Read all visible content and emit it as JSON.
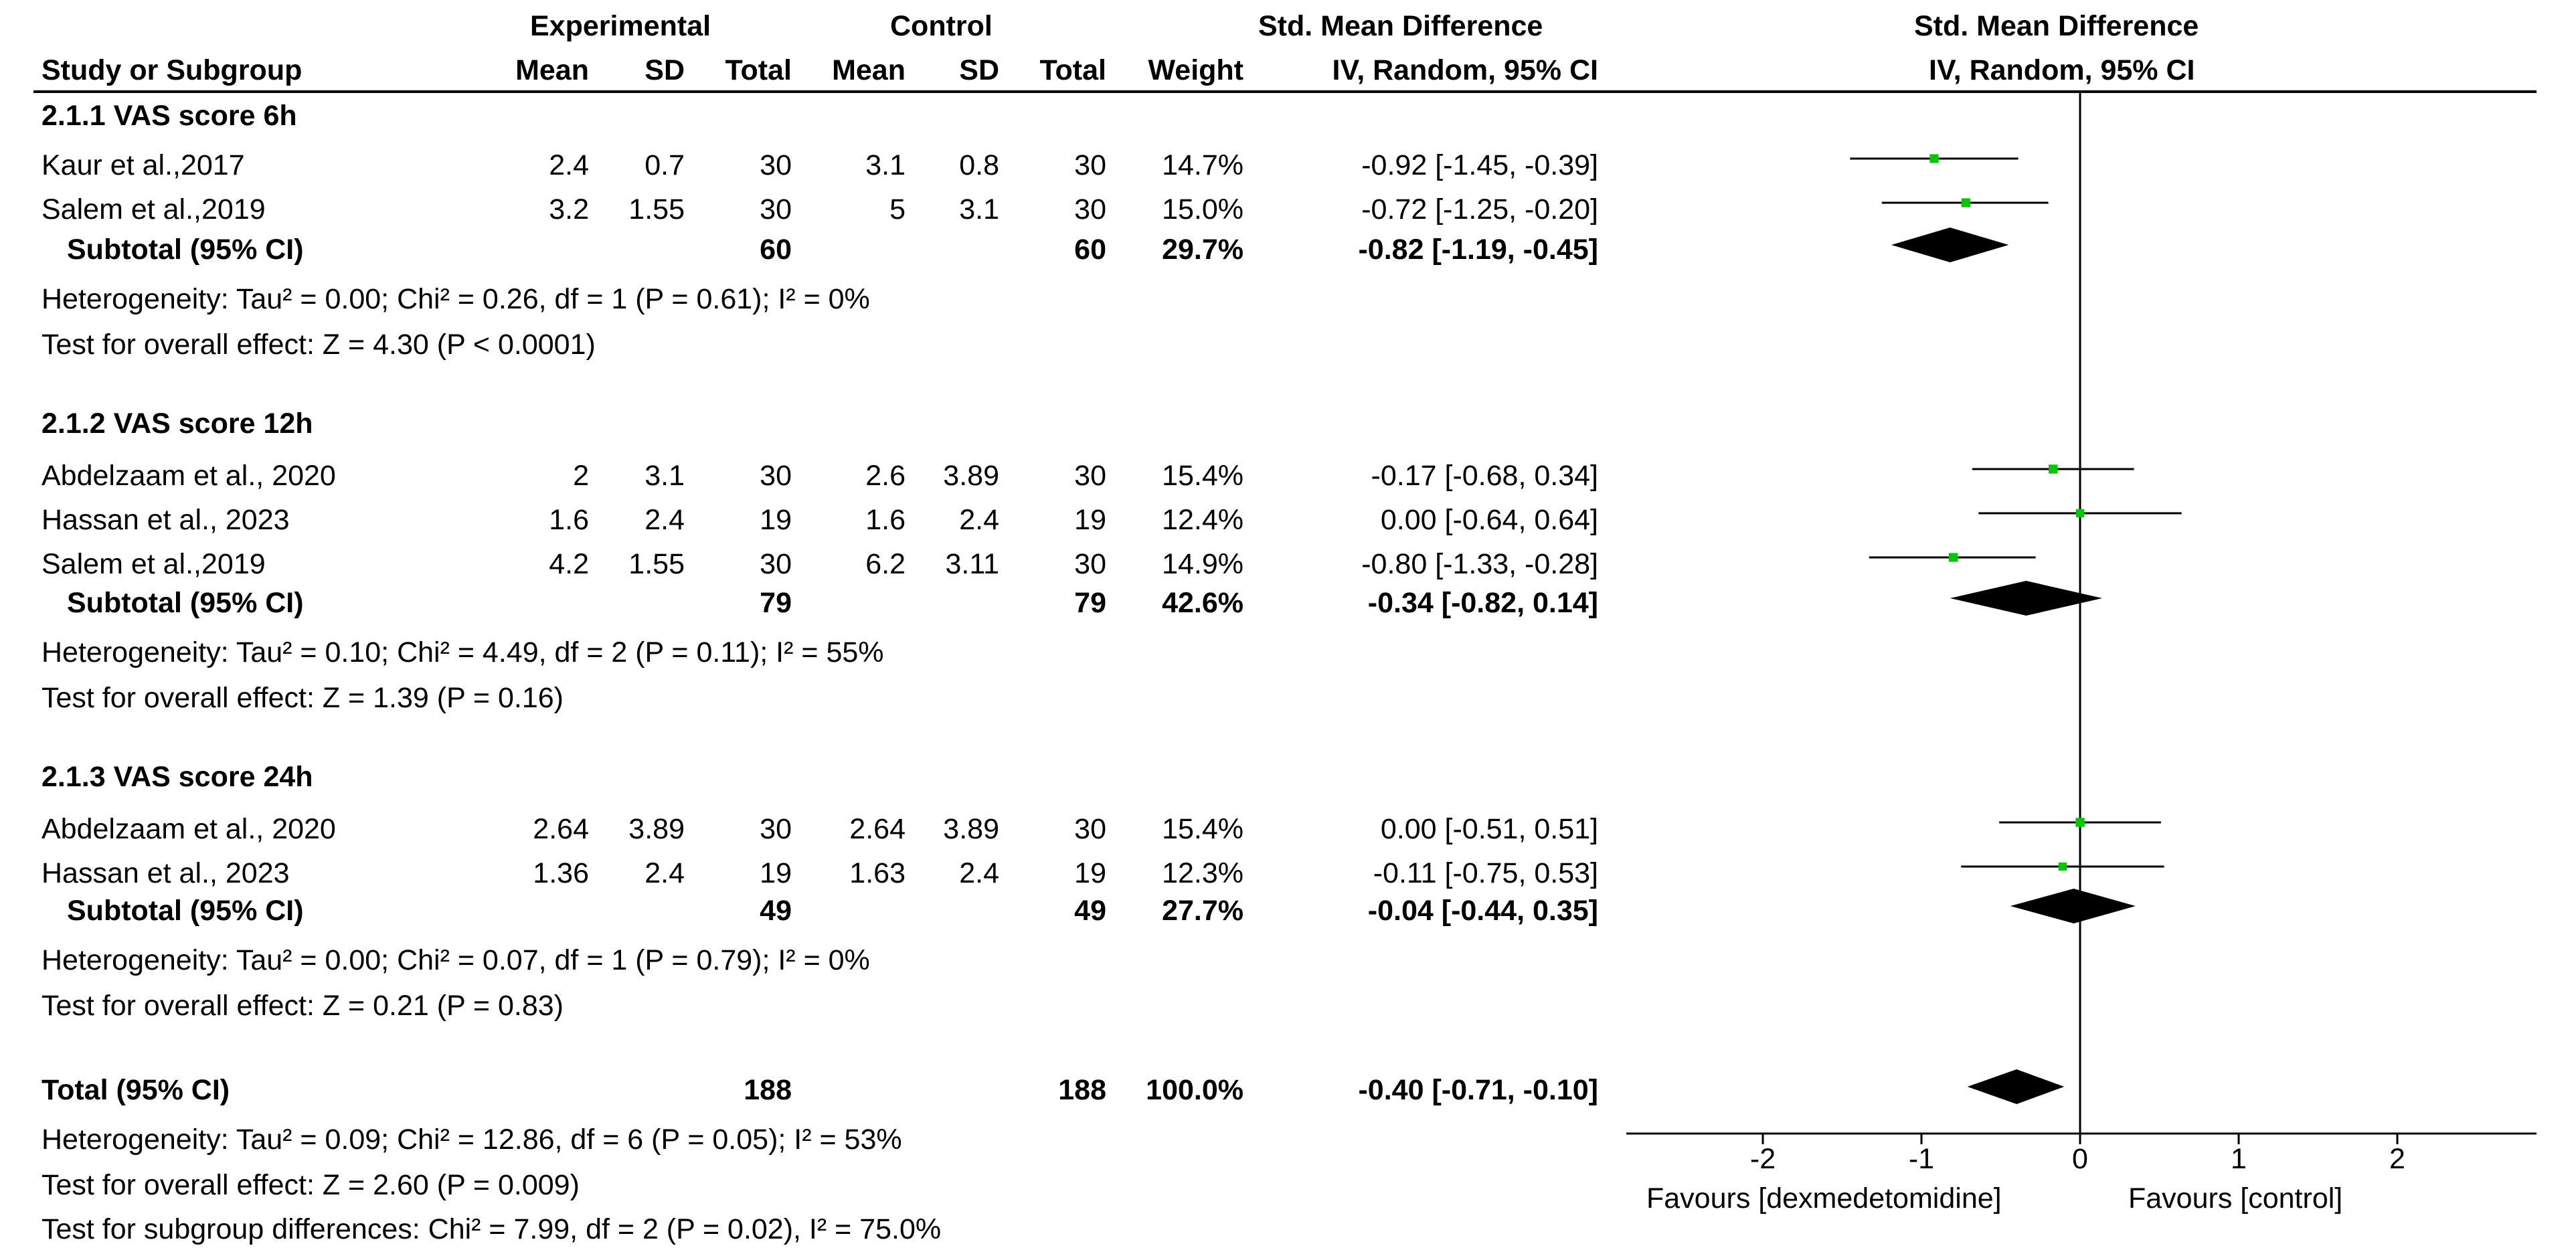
{
  "headers": {
    "experimental_group": "Experimental",
    "control_group": "Control",
    "smd_group": "Std. Mean Difference",
    "study": "Study or Subgroup",
    "exp_mean": "Mean",
    "exp_sd": "SD",
    "exp_total": "Total",
    "ctl_mean": "Mean",
    "ctl_sd": "SD",
    "ctl_total": "Total",
    "weight": "Weight",
    "smd_method": "IV, Random, 95% CI",
    "plot_title": "Std. Mean Difference",
    "plot_method": "IV, Random, 95% CI"
  },
  "subgroups": [
    {
      "title": "2.1.1 VAS score 6h",
      "studies": [
        {
          "name": "Kaur et al.,2017",
          "exp_mean": "2.4",
          "exp_sd": "0.7",
          "exp_total": "30",
          "ctl_mean": "3.1",
          "ctl_sd": "0.8",
          "ctl_total": "30",
          "weight": "14.7%",
          "ci": "-0.92 [-1.45, -0.39]"
        },
        {
          "name": "Salem et al.,2019",
          "exp_mean": "3.2",
          "exp_sd": "1.55",
          "exp_total": "30",
          "ctl_mean": "5",
          "ctl_sd": "3.1",
          "ctl_total": "30",
          "weight": "15.0%",
          "ci": "-0.72 [-1.25, -0.20]"
        }
      ],
      "subtotal": {
        "label": "Subtotal (95% CI)",
        "exp_total": "60",
        "ctl_total": "60",
        "weight": "29.7%",
        "ci": "-0.82 [-1.19, -0.45]"
      },
      "heterogeneity": "Heterogeneity: Tau² = 0.00; Chi² = 0.26, df = 1 (P = 0.61); I² = 0%",
      "overall": "Test for overall effect: Z = 4.30 (P < 0.0001)"
    },
    {
      "title": "2.1.2 VAS score 12h",
      "studies": [
        {
          "name": "Abdelzaam et al., 2020",
          "exp_mean": "2",
          "exp_sd": "3.1",
          "exp_total": "30",
          "ctl_mean": "2.6",
          "ctl_sd": "3.89",
          "ctl_total": "30",
          "weight": "15.4%",
          "ci": "-0.17 [-0.68, 0.34]"
        },
        {
          "name": "Hassan et al., 2023",
          "exp_mean": "1.6",
          "exp_sd": "2.4",
          "exp_total": "19",
          "ctl_mean": "1.6",
          "ctl_sd": "2.4",
          "ctl_total": "19",
          "weight": "12.4%",
          "ci": "0.00 [-0.64, 0.64]"
        },
        {
          "name": "Salem et al.,2019",
          "exp_mean": "4.2",
          "exp_sd": "1.55",
          "exp_total": "30",
          "ctl_mean": "6.2",
          "ctl_sd": "3.11",
          "ctl_total": "30",
          "weight": "14.9%",
          "ci": "-0.80 [-1.33, -0.28]"
        }
      ],
      "subtotal": {
        "label": "Subtotal (95% CI)",
        "exp_total": "79",
        "ctl_total": "79",
        "weight": "42.6%",
        "ci": "-0.34 [-0.82, 0.14]"
      },
      "heterogeneity": "Heterogeneity: Tau² = 0.10; Chi² = 4.49, df = 2 (P = 0.11); I² = 55%",
      "overall": "Test for overall effect: Z = 1.39 (P = 0.16)"
    },
    {
      "title": "2.1.3 VAS score 24h",
      "studies": [
        {
          "name": "Abdelzaam et al., 2020",
          "exp_mean": "2.64",
          "exp_sd": "3.89",
          "exp_total": "30",
          "ctl_mean": "2.64",
          "ctl_sd": "3.89",
          "ctl_total": "30",
          "weight": "15.4%",
          "ci": "0.00 [-0.51, 0.51]"
        },
        {
          "name": "Hassan et al., 2023",
          "exp_mean": "1.36",
          "exp_sd": "2.4",
          "exp_total": "19",
          "ctl_mean": "1.63",
          "ctl_sd": "2.4",
          "ctl_total": "19",
          "weight": "12.3%",
          "ci": "-0.11 [-0.75, 0.53]"
        }
      ],
      "subtotal": {
        "label": "Subtotal (95% CI)",
        "exp_total": "49",
        "ctl_total": "49",
        "weight": "27.7%",
        "ci": "-0.04 [-0.44, 0.35]"
      },
      "heterogeneity": "Heterogeneity: Tau² = 0.00; Chi² = 0.07, df = 1 (P = 0.79); I² = 0%",
      "overall": "Test for overall effect: Z = 0.21 (P = 0.83)"
    }
  ],
  "total": {
    "label": "Total (95% CI)",
    "exp_total": "188",
    "ctl_total": "188",
    "weight": "100.0%",
    "ci": "-0.40 [-0.71, -0.10]",
    "heterogeneity": "Heterogeneity: Tau² = 0.09; Chi² = 12.86, df = 6 (P = 0.05); I² = 53%",
    "overall": "Test for overall effect: Z = 2.60 (P = 0.009)",
    "subgroup_diff": "Test for subgroup differences: Chi² = 7.99, df = 2 (P = 0.02), I² = 75.0%"
  },
  "axis": {
    "ticks": [
      "-2",
      "-1",
      "0",
      "1",
      "2"
    ],
    "left_label": "Favours [dexmedetomidine]",
    "right_label": "Favours [control]"
  },
  "colors": {
    "study_marker": "#00c800",
    "diamond": "#000000",
    "line": "#000000"
  },
  "chart_data": {
    "type": "forest",
    "xlim": [
      -2.8,
      2.8
    ],
    "xticks": [
      -2,
      -1,
      0,
      1,
      2
    ],
    "studies": [
      {
        "subgroup": "2.1.1 VAS score 6h",
        "name": "Kaur et al.,2017",
        "est": -0.92,
        "lo": -1.45,
        "hi": -0.39,
        "weight": 14.7
      },
      {
        "subgroup": "2.1.1 VAS score 6h",
        "name": "Salem et al.,2019",
        "est": -0.72,
        "lo": -1.25,
        "hi": -0.2,
        "weight": 15.0
      },
      {
        "subgroup": "2.1.2 VAS score 12h",
        "name": "Abdelzaam et al., 2020",
        "est": -0.17,
        "lo": -0.68,
        "hi": 0.34,
        "weight": 15.4
      },
      {
        "subgroup": "2.1.2 VAS score 12h",
        "name": "Hassan et al., 2023",
        "est": 0.0,
        "lo": -0.64,
        "hi": 0.64,
        "weight": 12.4
      },
      {
        "subgroup": "2.1.2 VAS score 12h",
        "name": "Salem et al.,2019",
        "est": -0.8,
        "lo": -1.33,
        "hi": -0.28,
        "weight": 14.9
      },
      {
        "subgroup": "2.1.3 VAS score 24h",
        "name": "Abdelzaam et al., 2020",
        "est": 0.0,
        "lo": -0.51,
        "hi": 0.51,
        "weight": 15.4
      },
      {
        "subgroup": "2.1.3 VAS score 24h",
        "name": "Hassan et al., 2023",
        "est": -0.11,
        "lo": -0.75,
        "hi": 0.53,
        "weight": 12.3
      }
    ],
    "pooled": [
      {
        "name": "Subtotal 2.1.1",
        "est": -0.82,
        "lo": -1.19,
        "hi": -0.45
      },
      {
        "name": "Subtotal 2.1.2",
        "est": -0.34,
        "lo": -0.82,
        "hi": 0.14
      },
      {
        "name": "Subtotal 2.1.3",
        "est": -0.04,
        "lo": -0.44,
        "hi": 0.35
      },
      {
        "name": "Total",
        "est": -0.4,
        "lo": -0.71,
        "hi": -0.1
      }
    ]
  }
}
